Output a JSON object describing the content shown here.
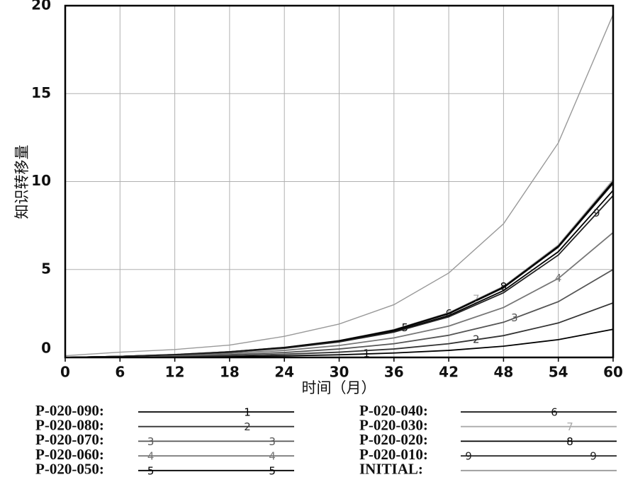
{
  "chart_data": {
    "type": "line",
    "ylabel": "知识转移量",
    "xlabel": "时间（月）",
    "x": [
      0,
      6,
      12,
      18,
      24,
      30,
      36,
      42,
      48,
      54,
      60
    ],
    "xlim": [
      0,
      60
    ],
    "xticks": [
      0,
      6,
      12,
      18,
      24,
      30,
      36,
      42,
      48,
      54,
      60
    ],
    "ylim": [
      0,
      20
    ],
    "yticks": [
      0,
      5,
      10,
      15,
      20
    ],
    "grid": true,
    "series": [
      {
        "name": "P-020-090:",
        "label": "1",
        "color": "#000000",
        "values": [
          0,
          0.01,
          0.03,
          0.05,
          0.09,
          0.15,
          0.25,
          0.4,
          0.64,
          1.01,
          1.6
        ]
      },
      {
        "name": "P-020-080:",
        "label": "2",
        "color": "#333333",
        "values": [
          0,
          0.02,
          0.05,
          0.1,
          0.18,
          0.3,
          0.48,
          0.78,
          1.24,
          1.96,
          3.1
        ]
      },
      {
        "name": "P-020-070:",
        "label": "3",
        "color": "#555555",
        "values": [
          0,
          0.03,
          0.08,
          0.16,
          0.28,
          0.48,
          0.78,
          1.26,
          2.0,
          3.17,
          5.0
        ]
      },
      {
        "name": "P-020-060:",
        "label": "4",
        "color": "#777777",
        "values": [
          0,
          0.05,
          0.12,
          0.23,
          0.4,
          0.68,
          1.11,
          1.78,
          2.84,
          4.49,
          7.1
        ]
      },
      {
        "name": "P-020-050:",
        "label": "5",
        "color": "#000000",
        "values": [
          0,
          0.06,
          0.16,
          0.3,
          0.54,
          0.91,
          1.48,
          2.38,
          3.8,
          6.01,
          9.5
        ]
      },
      {
        "name": "P-020-040:",
        "label": "6",
        "color": "#111111",
        "values": [
          0,
          0.06,
          0.16,
          0.32,
          0.56,
          0.94,
          1.54,
          2.48,
          3.96,
          6.27,
          9.9
        ]
      },
      {
        "name": "P-020-030:",
        "label": "7",
        "color": "#aaaaaa",
        "values": [
          0,
          0.06,
          0.17,
          0.32,
          0.57,
          0.96,
          1.58,
          2.54,
          4.04,
          6.39,
          10.1
        ]
      },
      {
        "name": "P-020-020:",
        "label": "8",
        "color": "#000000",
        "values": [
          0,
          0.06,
          0.16,
          0.32,
          0.57,
          0.95,
          1.56,
          2.51,
          4.0,
          6.33,
          10.0
        ]
      },
      {
        "name": "P-020-010:",
        "label": "9",
        "color": "#222222",
        "values": [
          0,
          0.06,
          0.15,
          0.3,
          0.52,
          0.88,
          1.44,
          2.31,
          3.68,
          5.82,
          9.2
        ]
      },
      {
        "name": "INITIAL:",
        "color": "#999999",
        "values": [
          0.1,
          0.3,
          0.45,
          0.7,
          1.2,
          1.9,
          3.0,
          4.8,
          7.6,
          12.2,
          19.5
        ]
      }
    ]
  }
}
